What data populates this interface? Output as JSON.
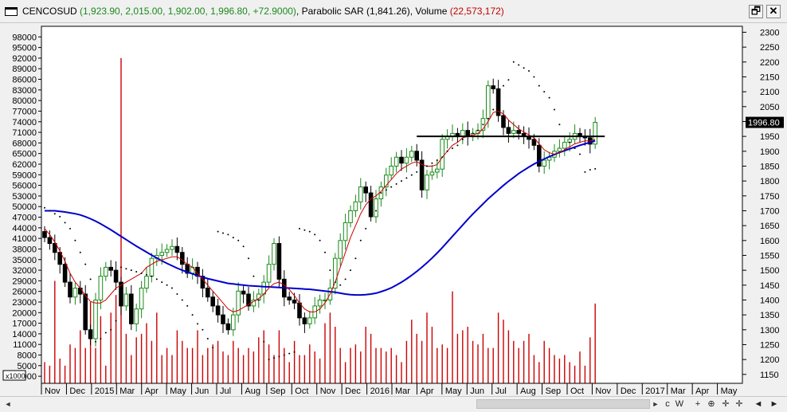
{
  "window": {
    "symbol": "CENCOSUD",
    "ohlc_text": "(1,923.90, 2,015.00, 1,902.00, 1,996.80, +72.9000)",
    "sar_label": "Parabolic SAR",
    "sar_text": "(1,841.26),",
    "volume_label": "Volume",
    "volume_text": "(22,573,172)",
    "restore_glyph": "🗗",
    "close_glyph": "✕"
  },
  "bottom_toolbar": {
    "left_arrow": "◄",
    "right_arrow": "►",
    "tools": [
      "ᴄ",
      "W",
      "+",
      "⊕",
      "✛",
      "✛",
      "◄",
      "►"
    ]
  },
  "chart_data": {
    "type": "candlestick",
    "price_axis": {
      "ticks": [
        1150,
        1200,
        1250,
        1300,
        1350,
        1400,
        1450,
        1500,
        1550,
        1600,
        1650,
        1700,
        1750,
        1800,
        1850,
        1900,
        1950,
        2000,
        2050,
        2100,
        2150,
        2200,
        2250,
        2300
      ],
      "range": [
        1120,
        2320
      ]
    },
    "volume_axis": {
      "unit_label": "x1000",
      "ticks": [
        2000,
        5000,
        8000,
        11000,
        14000,
        17000,
        20000,
        23000,
        26000,
        29000,
        32000,
        35000,
        38000,
        41000,
        44000,
        47000,
        50000,
        53000,
        56000,
        59000,
        62000,
        65000,
        68000,
        71000,
        74000,
        77000,
        80000,
        83000,
        86000,
        89000,
        92000,
        95000,
        98000
      ],
      "range": [
        0,
        101000
      ]
    },
    "x_labels": [
      "Nov",
      "Dec",
      "2015",
      "Mar",
      "Apr",
      "May",
      "Jun",
      "Jul",
      "Aug",
      "Sep",
      "Oct",
      "Nov",
      "Dec",
      "2016",
      "Mar",
      "Apr",
      "May",
      "Jun",
      "Jul",
      "Aug",
      "Sep",
      "Oct",
      "Nov",
      "Dec",
      "2017",
      "Mar",
      "Apr",
      "May"
    ],
    "last_price_label": "1996.80",
    "horizontal_line": 1950,
    "colors": {
      "up": "#1a8a1a",
      "down": "#000000",
      "volume": "#cc0000",
      "sma_fast": "#cc0000",
      "sma_slow": "#0000cc",
      "sar": "#000000",
      "hline": "#000000",
      "last_price_bg": "#000000"
    },
    "close": [
      1610,
      1590,
      1560,
      1520,
      1460,
      1410,
      1440,
      1420,
      1300,
      1270,
      1400,
      1480,
      1510,
      1500,
      1460,
      1380,
      1420,
      1320,
      1370,
      1440,
      1480,
      1540,
      1550,
      1560,
      1570,
      1580,
      1560,
      1520,
      1490,
      1510,
      1480,
      1440,
      1410,
      1380,
      1350,
      1320,
      1300,
      1350,
      1430,
      1420,
      1380,
      1400,
      1420,
      1460,
      1520,
      1590,
      1470,
      1410,
      1400,
      1390,
      1340,
      1320,
      1340,
      1380,
      1400,
      1400,
      1440,
      1540,
      1600,
      1660,
      1700,
      1730,
      1780,
      1760,
      1680,
      1740,
      1780,
      1820,
      1850,
      1880,
      1860,
      1880,
      1900,
      1870,
      1770,
      1820,
      1830,
      1840,
      1940,
      1950,
      1960,
      1950,
      1970,
      1950,
      1960,
      1970,
      2010,
      2120,
      2110,
      2020,
      1980,
      1960,
      1970,
      1960,
      1950,
      1940,
      1920,
      1850,
      1870,
      1880,
      1900,
      1910,
      1930,
      1940,
      1960,
      1950,
      1945,
      1924,
      1997
    ],
    "volume": [
      6000,
      5000,
      29000,
      7000,
      5000,
      11000,
      10000,
      15000,
      10000,
      23000,
      10000,
      19000,
      5000,
      20000,
      25000,
      92000,
      14000,
      8000,
      13000,
      14000,
      17000,
      12000,
      20000,
      8000,
      10000,
      8000,
      15000,
      12000,
      10000,
      10000,
      15000,
      8000,
      10000,
      11000,
      12000,
      9000,
      8000,
      12000,
      10000,
      8000,
      10000,
      9000,
      13000,
      15000,
      11000,
      8000,
      15000,
      10000,
      6000,
      12000,
      8000,
      8000,
      11000,
      9000,
      7000,
      17000,
      20000,
      16000,
      10000,
      6000,
      10000,
      11000,
      9000,
      16000,
      14000,
      10000,
      10000,
      9000,
      10000,
      8000,
      6000,
      12000,
      18000,
      14000,
      12000,
      20000,
      16000,
      10000,
      11000,
      10000,
      26000,
      14000,
      15000,
      16000,
      12000,
      11000,
      14000,
      10000,
      10000,
      20000,
      18000,
      15000,
      12000,
      10000,
      12000,
      14000,
      8000,
      6000,
      12000,
      10000,
      8000,
      7000,
      8000,
      6000,
      5000,
      9000,
      5000,
      13000,
      22573
    ],
    "sma_fast": [
      1640,
      1620,
      1595,
      1565,
      1530,
      1490,
      1460,
      1440,
      1415,
      1395,
      1390,
      1390,
      1400,
      1420,
      1440,
      1450,
      1460,
      1470,
      1480,
      1490,
      1510,
      1520,
      1530,
      1535,
      1540,
      1545,
      1545,
      1535,
      1520,
      1510,
      1490,
      1470,
      1450,
      1430,
      1410,
      1390,
      1370,
      1360,
      1365,
      1375,
      1385,
      1395,
      1405,
      1420,
      1440,
      1455,
      1460,
      1450,
      1435,
      1415,
      1390,
      1370,
      1360,
      1360,
      1370,
      1390,
      1420,
      1460,
      1510,
      1560,
      1610,
      1650,
      1690,
      1720,
      1740,
      1750,
      1765,
      1785,
      1805,
      1825,
      1840,
      1850,
      1860,
      1865,
      1855,
      1850,
      1850,
      1855,
      1880,
      1900,
      1920,
      1930,
      1945,
      1950,
      1955,
      1960,
      1975,
      2000,
      2030,
      2035,
      2025,
      2005,
      1990,
      1975,
      1965,
      1955,
      1945,
      1925,
      1905,
      1895,
      1890,
      1895,
      1905,
      1915,
      1925,
      1930,
      1935,
      1935,
      1940
    ],
    "sma_slow": [
      1700,
      1700,
      1700,
      1698,
      1696,
      1693,
      1690,
      1686,
      1680,
      1673,
      1665,
      1656,
      1646,
      1636,
      1625,
      1614,
      1603,
      1592,
      1581,
      1571,
      1561,
      1551,
      1541,
      1532,
      1523,
      1515,
      1507,
      1500,
      1494,
      1488,
      1482,
      1477,
      1472,
      1468,
      1464,
      1460,
      1456,
      1454,
      1452,
      1450,
      1448,
      1447,
      1446,
      1445,
      1444,
      1443,
      1442,
      1441,
      1440,
      1439,
      1438,
      1437,
      1436,
      1434,
      1432,
      1430,
      1428,
      1426,
      1423,
      1420,
      1418,
      1417,
      1417,
      1418,
      1420,
      1423,
      1428,
      1434,
      1441,
      1450,
      1460,
      1471,
      1483,
      1496,
      1510,
      1525,
      1541,
      1558,
      1576,
      1595,
      1614,
      1633,
      1652,
      1671,
      1689,
      1706,
      1723,
      1740,
      1755,
      1770,
      1785,
      1799,
      1812,
      1825,
      1836,
      1847,
      1857,
      1866,
      1874,
      1882,
      1889,
      1896,
      1902,
      1908,
      1914,
      1920,
      1925,
      1930,
      1935
    ],
    "sar": [
      1710,
      1700,
      1690,
      1680,
      1660,
      1640,
      1600,
      1560,
      1520,
      1470,
      1260,
      1270,
      1290,
      1300,
      1330,
      1510,
      1505,
      1500,
      1495,
      1490,
      1485,
      1480,
      1470,
      1460,
      1450,
      1440,
      1420,
      1400,
      1380,
      1350,
      1320,
      1300,
      1270,
      1240,
      1630,
      1625,
      1620,
      1610,
      1600,
      1580,
      1540,
      1480,
      1400,
      1260,
      1200,
      1205,
      1210,
      1215,
      1220,
      1225,
      1640,
      1635,
      1630,
      1620,
      1600,
      1560,
      1500,
      1460,
      1450,
      1470,
      1500,
      1540,
      1600,
      1640,
      1680,
      1700,
      1760,
      1770,
      1780,
      1790,
      1800,
      1810,
      1820,
      1830,
      1840,
      1850,
      1860,
      1870,
      1880,
      1900,
      1910,
      1920,
      1940,
      1950,
      1960,
      1970,
      1990,
      2010,
      2040,
      2080,
      2120,
      2140,
      2200,
      2190,
      2180,
      2170,
      2150,
      2120,
      2100,
      2080,
      2040,
      1990,
      1950,
      1930,
      1910,
      1890,
      1830,
      1838,
      1841
    ]
  }
}
